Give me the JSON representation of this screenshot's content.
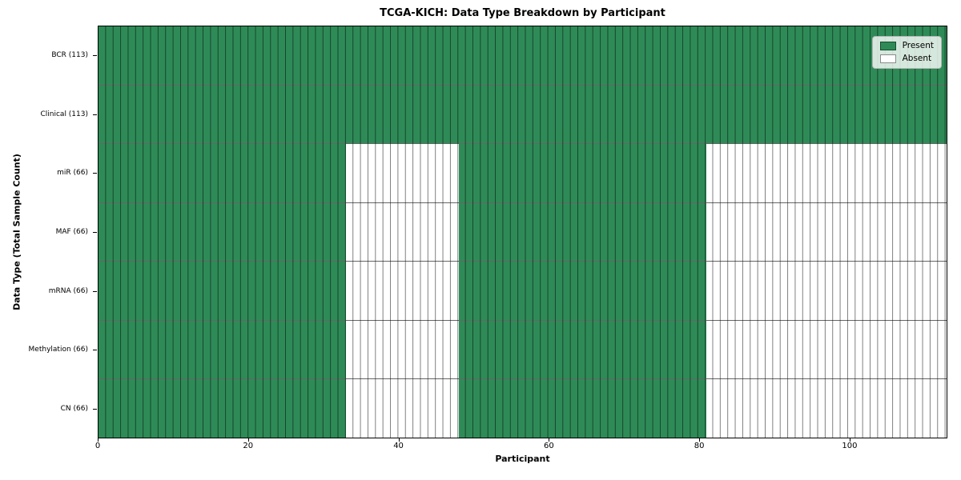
{
  "title": "TCGA-KICH: Data Type Breakdown by Participant",
  "colors": {
    "present": "#2E8B57",
    "absent": "#FFFFFF",
    "cell_edge": "rgba(0,0,0,0.5)",
    "legend_border": "#b5b5b5"
  },
  "legend": {
    "present_label": "Present",
    "absent_label": "Absent"
  },
  "chart_data": {
    "type": "heatmap",
    "title": "TCGA-KICH: Data Type Breakdown by Participant",
    "xlabel": "Participant",
    "ylabel": "Data Type (Total Sample Count)",
    "x_range": [
      0,
      113
    ],
    "x_ticks": [
      0,
      20,
      40,
      60,
      80,
      100
    ],
    "n_participants": 113,
    "grid": true,
    "legend_position": "upper right",
    "legend_entries": [
      {
        "label": "Present",
        "color": "#2E8B57"
      },
      {
        "label": "Absent",
        "color": "#FFFFFF"
      }
    ],
    "rows": [
      {
        "label": "BCR (113)",
        "total_samples": 113,
        "segments": [
          {
            "state": "present",
            "count": 113
          }
        ]
      },
      {
        "label": "Clinical (113)",
        "total_samples": 113,
        "segments": [
          {
            "state": "present",
            "count": 113
          }
        ]
      },
      {
        "label": "miR (66)",
        "total_samples": 66,
        "segments": [
          {
            "state": "present",
            "count": 33
          },
          {
            "state": "absent",
            "count": 15
          },
          {
            "state": "present",
            "count": 33
          },
          {
            "state": "absent",
            "count": 32
          }
        ]
      },
      {
        "label": "MAF (66)",
        "total_samples": 66,
        "segments": [
          {
            "state": "present",
            "count": 33
          },
          {
            "state": "absent",
            "count": 15
          },
          {
            "state": "present",
            "count": 33
          },
          {
            "state": "absent",
            "count": 32
          }
        ]
      },
      {
        "label": "mRNA (66)",
        "total_samples": 66,
        "segments": [
          {
            "state": "present",
            "count": 33
          },
          {
            "state": "absent",
            "count": 15
          },
          {
            "state": "present",
            "count": 33
          },
          {
            "state": "absent",
            "count": 32
          }
        ]
      },
      {
        "label": "Methylation (66)",
        "total_samples": 66,
        "segments": [
          {
            "state": "present",
            "count": 33
          },
          {
            "state": "absent",
            "count": 15
          },
          {
            "state": "present",
            "count": 33
          },
          {
            "state": "absent",
            "count": 32
          }
        ]
      },
      {
        "label": "CN (66)",
        "total_samples": 66,
        "segments": [
          {
            "state": "present",
            "count": 33
          },
          {
            "state": "absent",
            "count": 15
          },
          {
            "state": "present",
            "count": 33
          },
          {
            "state": "absent",
            "count": 32
          }
        ]
      }
    ]
  }
}
